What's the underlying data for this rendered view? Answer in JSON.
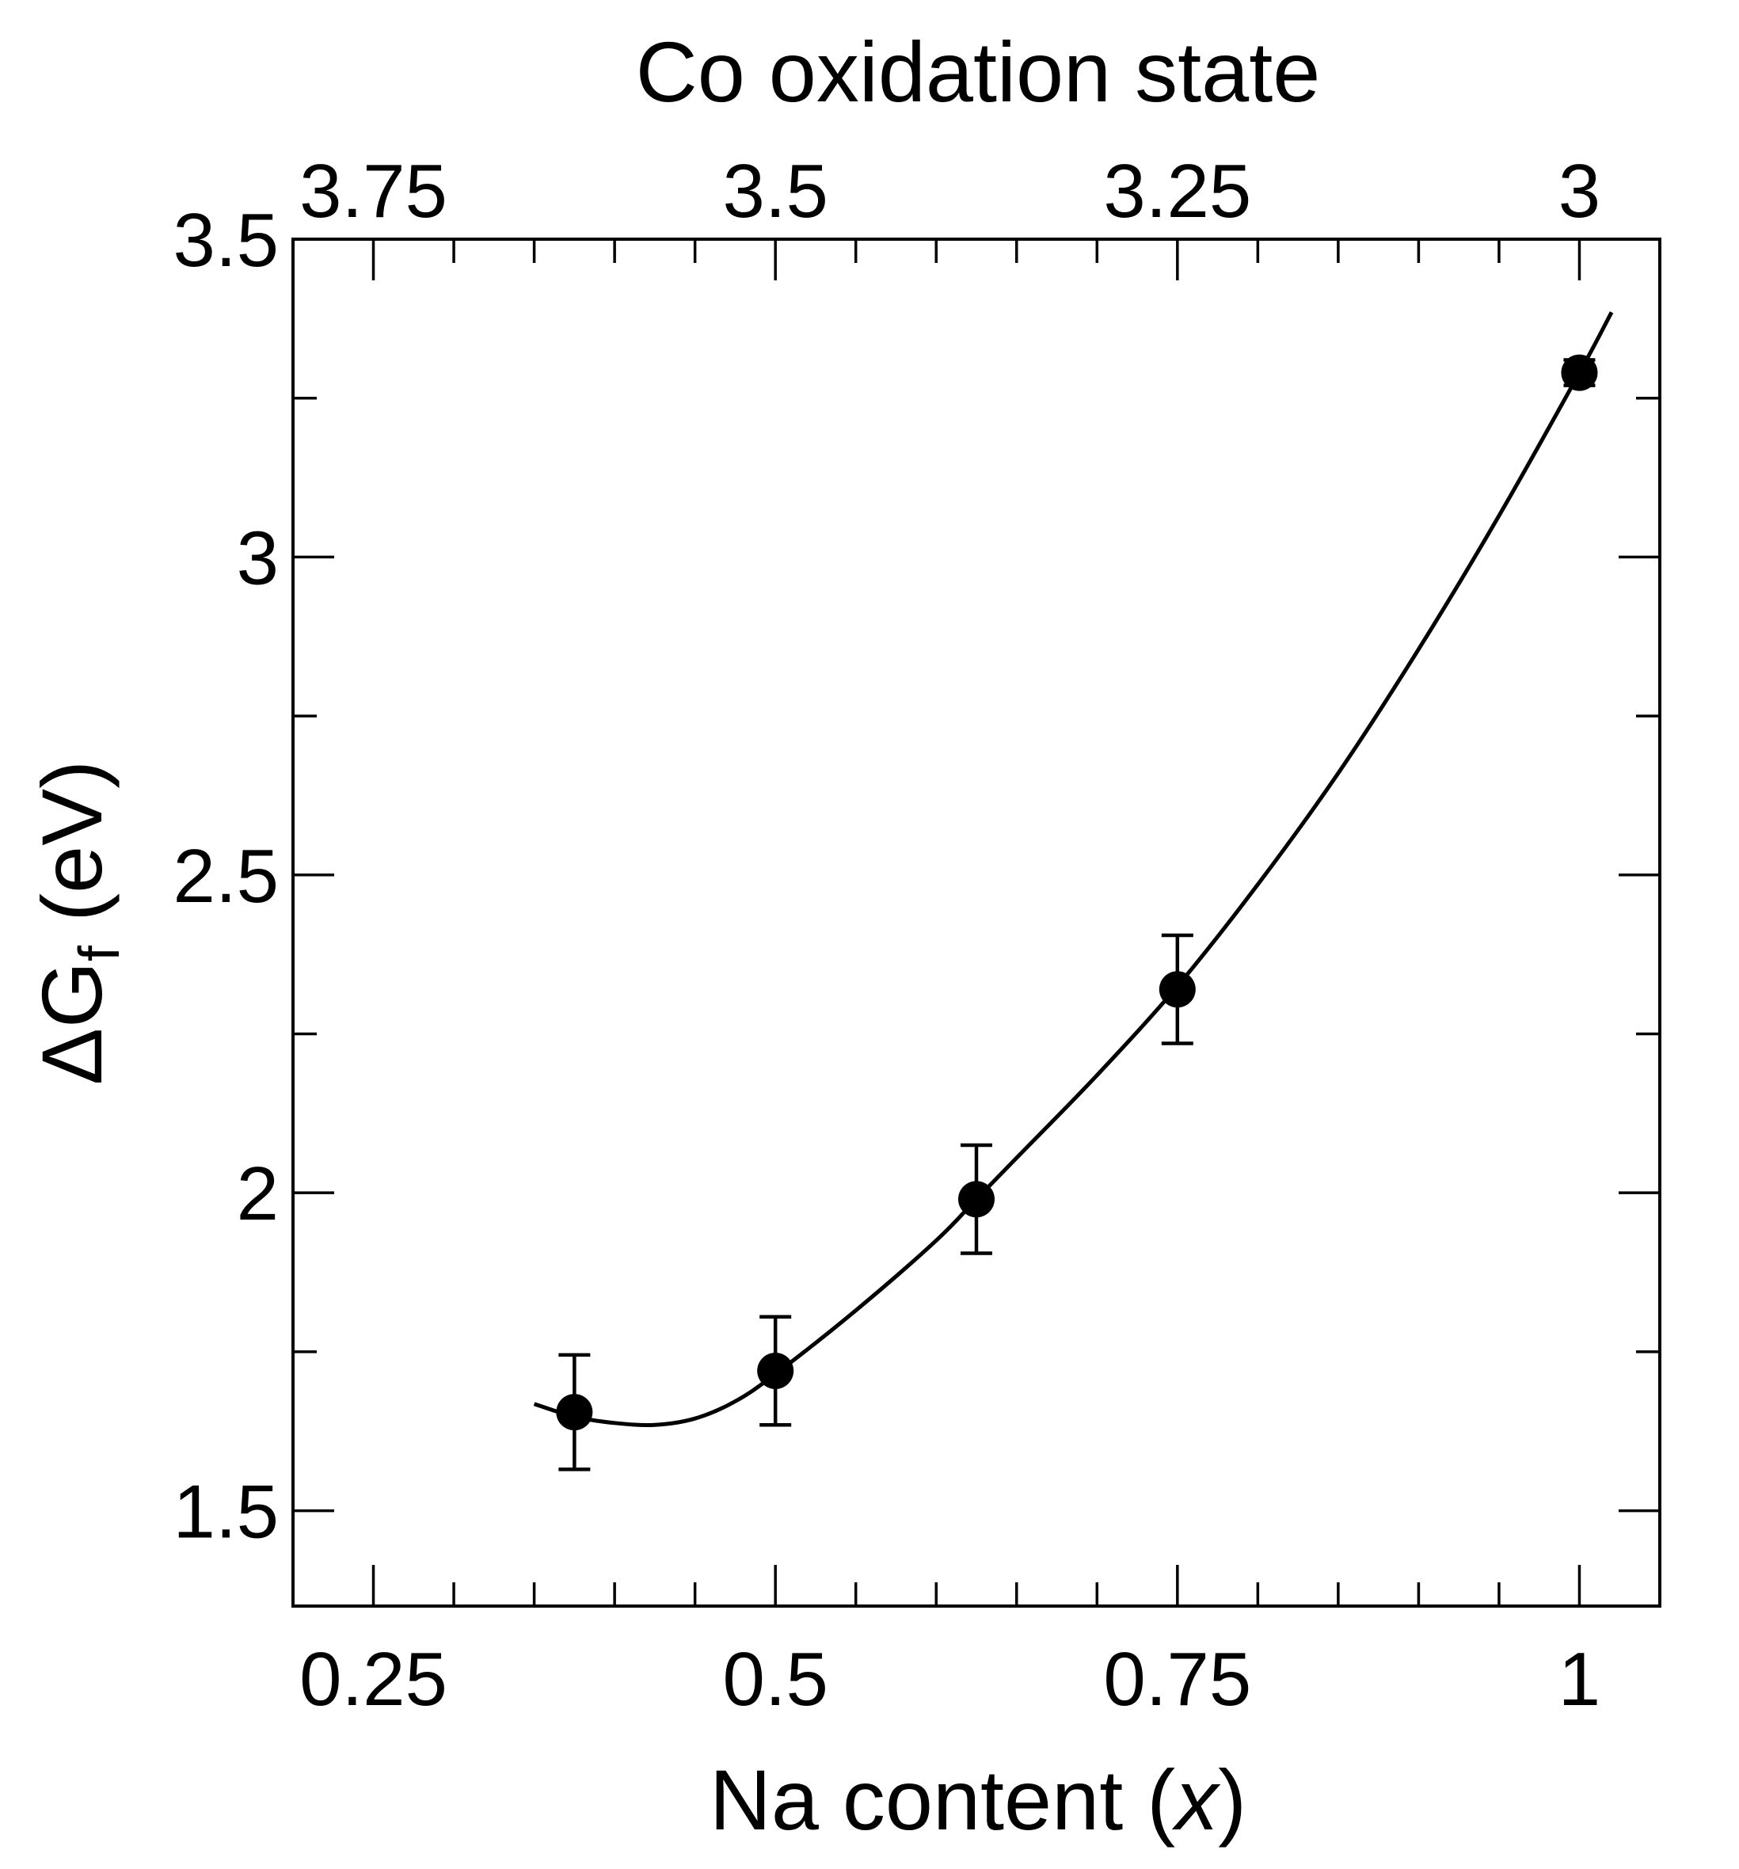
{
  "chart_data": {
    "type": "scatter",
    "xlabel_main": "Na content (",
    "xlabel_var": "x",
    "xlabel_close": ")",
    "x2label": "Co oxidation state",
    "ylabel_main": "ΔG",
    "ylabel_sub": "f",
    "ylabel_unit": " (eV)",
    "xlim": [
      0.2,
      1.05
    ],
    "ylim": [
      1.35,
      3.5
    ],
    "x_major_ticks": [
      0.25,
      0.5,
      0.75,
      1
    ],
    "x_tick_labels": [
      "0.25",
      "0.5",
      "0.75",
      "1"
    ],
    "x_minor_step": 0.05,
    "x2_tick_positions": [
      0.25,
      0.5,
      0.75,
      1
    ],
    "x2_tick_labels": [
      "3.75",
      "3.5",
      "3.25",
      "3"
    ],
    "y_major_ticks": [
      1.5,
      2,
      2.5,
      3,
      3.5
    ],
    "y_tick_labels": [
      "1.5",
      "2",
      "2.5",
      "3",
      "3.5"
    ],
    "y_minor_ticks": [
      1.75,
      2.25,
      2.75,
      3.25
    ],
    "points": [
      {
        "x": 0.375,
        "y": 1.655,
        "err": 0.09
      },
      {
        "x": 0.5,
        "y": 1.72,
        "err": 0.085
      },
      {
        "x": 0.625,
        "y": 1.99,
        "err": 0.085
      },
      {
        "x": 0.75,
        "y": 2.32,
        "err": 0.085
      },
      {
        "x": 1.0,
        "y": 3.29,
        "err": 0.02
      }
    ],
    "fit_curve": [
      [
        0.35,
        1.668
      ],
      [
        0.375,
        1.648
      ],
      [
        0.4,
        1.638
      ],
      [
        0.425,
        1.635
      ],
      [
        0.45,
        1.645
      ],
      [
        0.475,
        1.672
      ],
      [
        0.5,
        1.715
      ],
      [
        0.55,
        1.815
      ],
      [
        0.6,
        1.925
      ],
      [
        0.625,
        1.99
      ],
      [
        0.65,
        2.055
      ],
      [
        0.7,
        2.185
      ],
      [
        0.75,
        2.325
      ],
      [
        0.8,
        2.485
      ],
      [
        0.85,
        2.66
      ],
      [
        0.9,
        2.855
      ],
      [
        0.95,
        3.065
      ],
      [
        1.0,
        3.29
      ],
      [
        1.02,
        3.385
      ]
    ]
  }
}
